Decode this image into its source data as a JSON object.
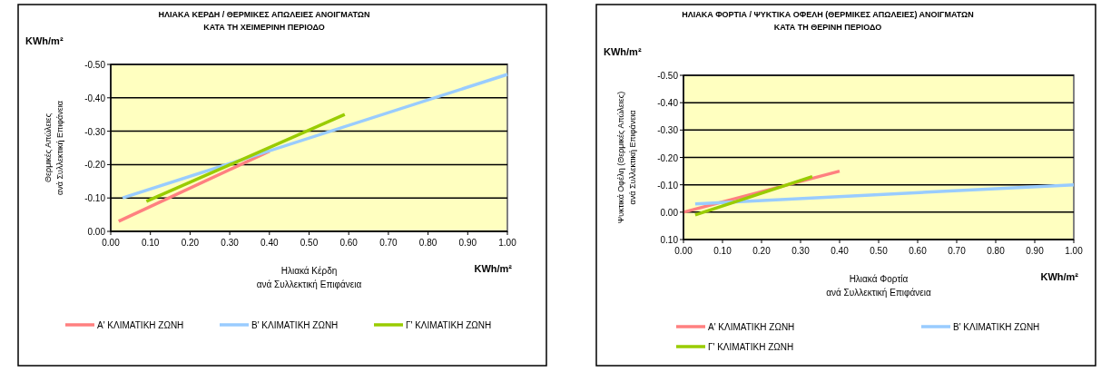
{
  "chart_data": [
    {
      "type": "line",
      "title": "ΗΛΙΑΚΑ ΚΕΡΔΗ / ΘΕΡΜΙΚΕΣ ΑΠΩΛΕΙΕΣ ΑΝΟΙΓΜΑΤΩΝ\nΚΑΤΑ ΤΗ ΧΕΙΜΕΡΙΝΗ  ΠΕΡΙΟΔΟ",
      "xlabel": "Ηλιακά Κέρδη\nανά Συλλεκτική Επιφάνεια",
      "ylabel": "Θερμικές Απώλειες\nανά Συλλεκτική Επιφάνεια",
      "annotations": [
        "KWh/m²",
        "KWh/m²"
      ],
      "xlim": [
        0,
        1
      ],
      "xticks": [
        {
          "value": 0,
          "label": "0.00"
        },
        {
          "value": 0.1,
          "label": "0.10"
        },
        {
          "value": 0.2,
          "label": "0.20"
        },
        {
          "value": 0.3,
          "label": "0.30"
        },
        {
          "value": 0.4,
          "label": "0.40"
        },
        {
          "value": 0.5,
          "label": "0.50"
        },
        {
          "value": 0.6,
          "label": "0.60"
        },
        {
          "value": 0.7,
          "label": "0.70"
        },
        {
          "value": 0.8,
          "label": "0.80"
        },
        {
          "value": 0.9,
          "label": "0.90"
        },
        {
          "value": 1,
          "label": "1.00"
        }
      ],
      "ylim": [
        0,
        -0.5
      ],
      "yticks": [
        {
          "value": 0,
          "label": "0.00"
        },
        {
          "value": -0.1,
          "label": "-0.10"
        },
        {
          "value": -0.2,
          "label": "-0.20"
        },
        {
          "value": -0.3,
          "label": "-0.30"
        },
        {
          "value": -0.4,
          "label": "-0.40"
        },
        {
          "value": -0.5,
          "label": "-0.50"
        }
      ],
      "grid": "y",
      "legend": "bottom",
      "series": [
        {
          "name": "Α' ΚΛΙΜΑΤΙΚΗ ΖΩΝΗ",
          "color": "#ff8080",
          "x": [
            0.02,
            0.4
          ],
          "values": [
            -0.03,
            -0.24
          ]
        },
        {
          "name": "Β' ΚΛΙΜΑΤΙΚΗ ΖΩΝΗ",
          "color": "#99ccff",
          "x": [
            0.03,
            1.0
          ],
          "values": [
            -0.1,
            -0.47
          ]
        },
        {
          "name": "Γ' ΚΛΙΜΑΤΙΚΗ ΖΩΝΗ",
          "color": "#99cc00",
          "x": [
            0.09,
            0.59
          ],
          "values": [
            -0.09,
            -0.35
          ]
        }
      ]
    },
    {
      "type": "line",
      "title": "ΗΛΙΑΚΑ ΦΟΡΤΙΑ / ΨΥΚΤΙΚΑ ΟΦΕΛΗ (ΘΕΡΜΙΚΕΣ ΑΠΩΛΕΙΕΣ) ΑΝΟΙΓΜΑΤΩΝ\nΚΑΤΑ ΤΗ ΘΕΡΙΝΗ ΠΕΡΙΟΔΟ",
      "xlabel": "Ηλιακά Φορτία\nανά Συλλεκτική Επιφάνεια",
      "ylabel": "Ψυκτικά Οφέλη (Θερμικές Απώλειες)\nανά Συλλεκτική Επιφάνεια",
      "annotations": [
        "KWh/m²",
        "KWh/m²"
      ],
      "xlim": [
        0,
        1
      ],
      "xticks": [
        {
          "value": 0,
          "label": "0.00"
        },
        {
          "value": 0.1,
          "label": "0.10"
        },
        {
          "value": 0.2,
          "label": "0.20"
        },
        {
          "value": 0.3,
          "label": "0.30"
        },
        {
          "value": 0.4,
          "label": "0.40"
        },
        {
          "value": 0.5,
          "label": "0.50"
        },
        {
          "value": 0.6,
          "label": "0.60"
        },
        {
          "value": 0.7,
          "label": "0.70"
        },
        {
          "value": 0.8,
          "label": "0.80"
        },
        {
          "value": 0.9,
          "label": "0.90"
        },
        {
          "value": 1,
          "label": "1.00"
        }
      ],
      "ylim": [
        0.1,
        -0.5
      ],
      "yticks": [
        {
          "value": 0.1,
          "label": "0.10"
        },
        {
          "value": 0,
          "label": "0.00"
        },
        {
          "value": -0.1,
          "label": "-0.10"
        },
        {
          "value": -0.2,
          "label": "-0.20"
        },
        {
          "value": -0.3,
          "label": "-0.30"
        },
        {
          "value": -0.4,
          "label": "-0.40"
        },
        {
          "value": -0.5,
          "label": "-0.50"
        }
      ],
      "grid": "y",
      "legend": "bottom",
      "series": [
        {
          "name": "Α' ΚΛΙΜΑΤΙΚΗ ΖΩΝΗ",
          "color": "#ff8080",
          "x": [
            0.0,
            0.4
          ],
          "values": [
            0.0,
            -0.15
          ]
        },
        {
          "name": "Β' ΚΛΙΜΑΤΙΚΗ ΖΩΝΗ",
          "color": "#99ccff",
          "x": [
            0.03,
            1.0
          ],
          "values": [
            -0.03,
            -0.1
          ]
        },
        {
          "name": "Γ' ΚΛΙΜΑΤΙΚΗ ΖΩΝΗ",
          "color": "#99cc00",
          "x": [
            0.03,
            0.33
          ],
          "values": [
            0.01,
            -0.13
          ]
        }
      ]
    }
  ]
}
